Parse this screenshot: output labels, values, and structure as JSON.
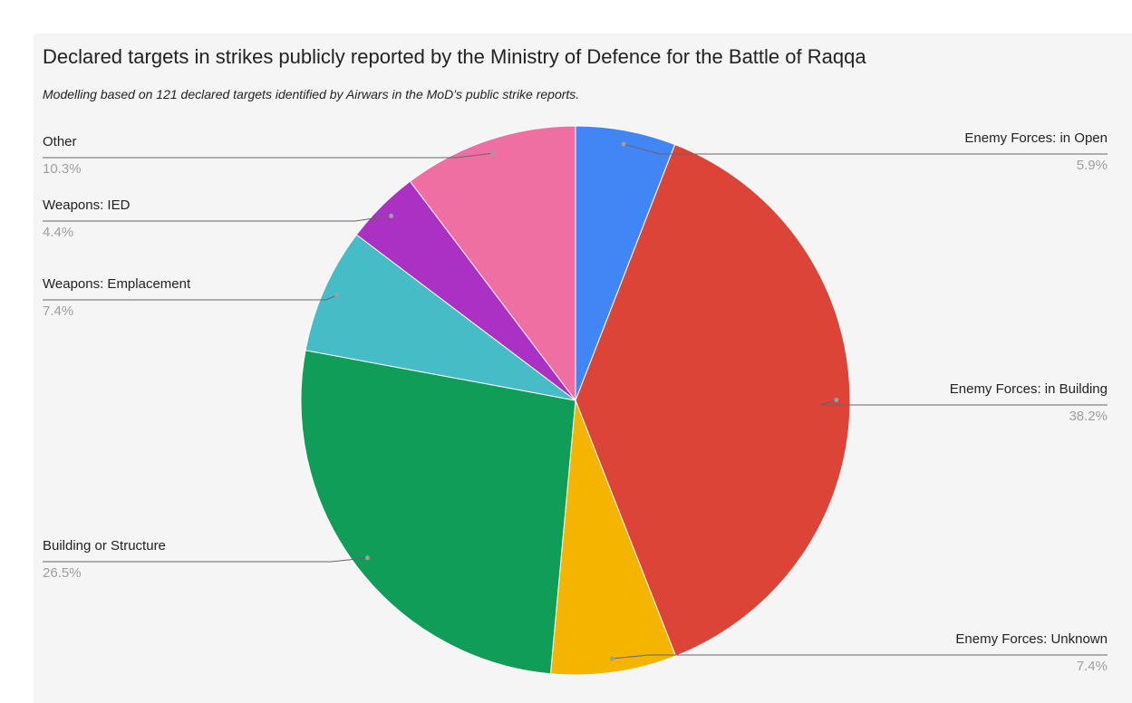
{
  "chart_data": {
    "type": "pie",
    "title": "Declared targets in strikes publicly reported by the Ministry of Defence for the Battle of Raqqa",
    "subtitle": "Modelling based on 121 declared targets identified by Airwars in the MoD’s public strike reports.",
    "slices": [
      {
        "name": "Enemy Forces: in Open",
        "value": 5.9,
        "label": "5.9%",
        "color": "#4285f4"
      },
      {
        "name": "Enemy Forces: in Building",
        "value": 38.2,
        "label": "38.2%",
        "color": "#db4437"
      },
      {
        "name": "Enemy Forces: Unknown",
        "value": 7.4,
        "label": "7.4%",
        "color": "#f4b400"
      },
      {
        "name": "Building or Structure",
        "value": 26.5,
        "label": "26.5%",
        "color": "#0f9d58"
      },
      {
        "name": "Weapons: Emplacement",
        "value": 7.4,
        "label": "7.4%",
        "color": "#46bdc6"
      },
      {
        "name": "Weapons: IED",
        "value": 4.4,
        "label": "4.4%",
        "color": "#ab30c4"
      },
      {
        "name": "Other",
        "value": 10.3,
        "label": "10.3%",
        "color": "#f06fa3"
      }
    ],
    "legend": "labels-with-leader-lines"
  }
}
